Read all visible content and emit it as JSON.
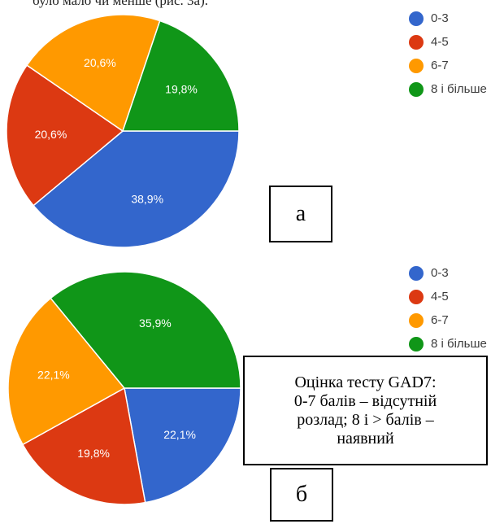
{
  "caption_top": "було мало чи менше (рис. 3а).",
  "colors": {
    "c03": "#3366cc",
    "c45": "#dc3912",
    "c67": "#ff9900",
    "c8": "#109618"
  },
  "chart_data": [
    {
      "type": "pie",
      "panel": "а",
      "legend": [
        "0-3",
        "4-5",
        "6-7",
        "8 і більше"
      ],
      "slices": [
        {
          "label": "0-3",
          "value": 38.9,
          "text": "38,9%"
        },
        {
          "label": "4-5",
          "value": 20.6,
          "text": "20,6%"
        },
        {
          "label": "6-7",
          "value": 20.6,
          "text": "20,6%"
        },
        {
          "label": "8 і більше",
          "value": 19.8,
          "text": "19,8%"
        }
      ]
    },
    {
      "type": "pie",
      "panel": "б",
      "legend": [
        "0-3",
        "4-5",
        "6-7",
        "8 і більше"
      ],
      "slices": [
        {
          "label": "0-3",
          "value": 22.1,
          "text": "22,1%"
        },
        {
          "label": "4-5",
          "value": 19.8,
          "text": "19,8%"
        },
        {
          "label": "6-7",
          "value": 22.1,
          "text": "22,1%"
        },
        {
          "label": "8 і більше",
          "value": 35.9,
          "text": "35,9%"
        }
      ]
    }
  ],
  "legend_items": [
    {
      "label": "0-3",
      "color": "#3366cc"
    },
    {
      "label": "4-5",
      "color": "#dc3912"
    },
    {
      "label": "6-7",
      "color": "#ff9900"
    },
    {
      "label": "8 і більше",
      "color": "#109618"
    }
  ],
  "panel_a_label": "а",
  "panel_b_label": "б",
  "note_lines": [
    "Оцінка тесту GAD7:",
    "0-7 балів – відсутній",
    "розлад; 8 і > балів –",
    "наявний"
  ]
}
